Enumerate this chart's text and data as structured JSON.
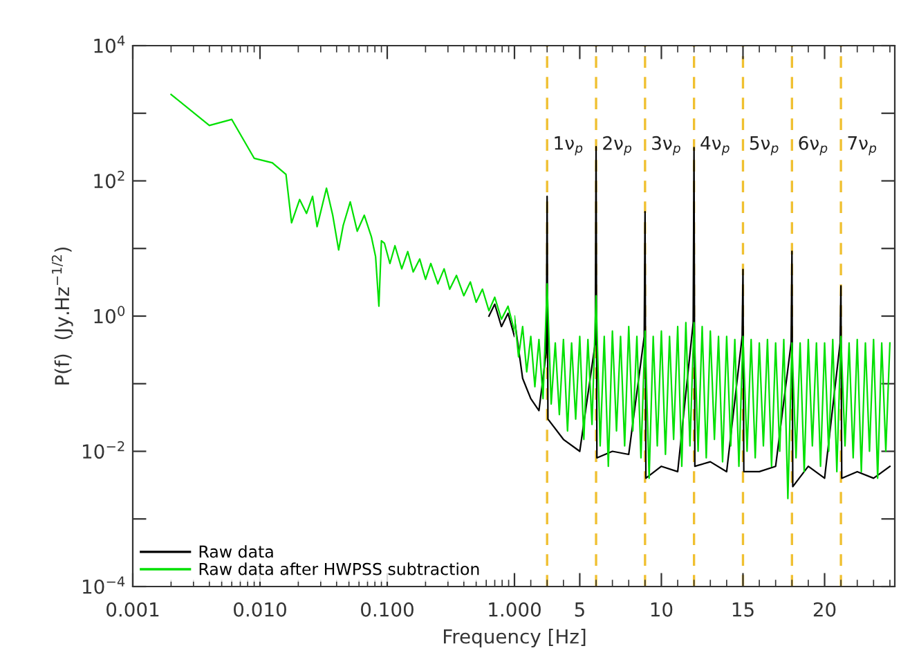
{
  "chart_data": [
    {
      "type": "line",
      "xlabel": "Frequency [Hz]",
      "ylabel": "P(f)  (Jy.Hz$^{−1/2}$)",
      "log": "xy",
      "xlim": [
        0.001,
        1
      ],
      "ylim": [
        0.0001,
        10000
      ],
      "xticks": [
        0.001,
        {
          "value": 0.01,
          "label": "0.010"
        },
        {
          "value": 0.1,
          "label": "0.100"
        },
        {
          "value": 1,
          "label": "1.000"
        }
      ],
      "yticks": [
        {
          "value": 0.0001,
          "label": "10$^{−4}$"
        },
        {
          "value": 0.001,
          "label": null
        },
        {
          "value": 0.01,
          "label": "10$^{−2}$"
        },
        {
          "value": 0.1,
          "label": null
        },
        {
          "value": 1,
          "label": "10$^{0}$"
        },
        {
          "value": 10,
          "label": null
        },
        {
          "value": 100,
          "label": "10$^{2}$"
        },
        {
          "value": 1000,
          "label": null
        },
        {
          "value": 10000,
          "label": "10$^{4}$"
        }
      ],
      "legend": "bottom left",
      "grid": false,
      "series": [
        {
          "name": "Raw data",
          "color": "#000000",
          "x": [
            0.63,
            0.7,
            0.79,
            0.89,
            1.0
          ],
          "values": [
            1.0,
            1.5,
            0.7,
            1.1,
            0.5
          ]
        },
        {
          "name": "Raw data after HWPSS subtraction",
          "color": "#00e000",
          "x": [
            0.002,
            0.004,
            0.006,
            0.009,
            0.0125,
            0.016,
            0.0177,
            0.0205,
            0.0232,
            0.0259,
            0.0281,
            0.0333,
            0.0373,
            0.0415,
            0.0451,
            0.0512,
            0.0581,
            0.066,
            0.075,
            0.081,
            0.086,
            0.09,
            0.095,
            0.105,
            0.115,
            0.13,
            0.145,
            0.16,
            0.18,
            0.2,
            0.22,
            0.25,
            0.28,
            0.31,
            0.35,
            0.4,
            0.45,
            0.5,
            0.56,
            0.63,
            0.7,
            0.79,
            0.89,
            1.0
          ],
          "values": [
            1900,
            660,
            810,
            216,
            185,
            125,
            24,
            53,
            33,
            59,
            21,
            78,
            31,
            9.5,
            22,
            49,
            18,
            31,
            15,
            7.6,
            1.4,
            13,
            12,
            6,
            11,
            5,
            9,
            4.5,
            7,
            3.5,
            6,
            3,
            5,
            2.5,
            4,
            2,
            3.2,
            1.6,
            2.5,
            1.2,
            1.9,
            0.9,
            1.4,
            0.6
          ]
        }
      ]
    },
    {
      "type": "line",
      "log": "y",
      "xlim": [
        1,
        24.3
      ],
      "ylim": [
        0.0001,
        10000
      ],
      "xticks": [
        5,
        10,
        15,
        20
      ],
      "yticks": [
        0.0001,
        0.001,
        0.01,
        0.1,
        1,
        10,
        100,
        1000,
        10000
      ],
      "tick_labels": "x",
      "grid": false,
      "ref_lines": [
        {
          "axis": "x",
          "value": 3,
          "label": "1ν$_{p}$",
          "color": "#f0c030",
          "line_style": "dashed"
        },
        {
          "axis": "x",
          "value": 6,
          "label": "2ν$_{p}$",
          "color": "#f0c030",
          "line_style": "dashed"
        },
        {
          "axis": "x",
          "value": 9,
          "label": "3ν$_{p}$",
          "color": "#f0c030",
          "line_style": "dashed"
        },
        {
          "axis": "x",
          "value": 12,
          "label": "4ν$_{p}$",
          "color": "#f0c030",
          "line_style": "dashed"
        },
        {
          "axis": "x",
          "value": 15,
          "label": "5ν$_{p}$",
          "color": "#f0c030",
          "line_style": "dashed"
        },
        {
          "axis": "x",
          "value": 18,
          "label": "6ν$_{p}$",
          "color": "#f0c030",
          "line_style": "dashed"
        },
        {
          "axis": "x",
          "value": 21,
          "label": "7ν$_{p}$",
          "color": "#f0c030",
          "line_style": "dashed"
        }
      ],
      "series": [
        {
          "color": "#000000",
          "x": [
            1.0,
            1.5,
            2.0,
            2.5,
            2.95,
            3.0,
            3.05,
            4.0,
            5.0,
            5.95,
            6.0,
            6.05,
            7.0,
            8.0,
            8.95,
            9.0,
            9.05,
            10.0,
            11.0,
            11.95,
            12.0,
            12.05,
            13.0,
            14.0,
            14.95,
            15.0,
            15.05,
            16.0,
            17.0,
            17.95,
            18.0,
            18.05,
            19.0,
            20.0,
            20.95,
            21.0,
            21.05,
            22.0,
            23.0,
            24.0
          ],
          "values": [
            0.9,
            0.12,
            0.06,
            0.04,
            0.3,
            59,
            0.03,
            0.015,
            0.01,
            0.4,
            320,
            0.008,
            0.01,
            0.009,
            0.5,
            35,
            0.004,
            0.006,
            0.005,
            0.8,
            310,
            0.006,
            0.007,
            0.005,
            0.5,
            4.9,
            0.005,
            0.005,
            0.006,
            0.4,
            9.1,
            0.003,
            0.006,
            0.004,
            0.4,
            2.8,
            0.004,
            0.005,
            0.004,
            0.006
          ]
        },
        {
          "color": "#00e000",
          "x": [
            1.0,
            1.25,
            1.5,
            1.75,
            2.0,
            2.25,
            2.5,
            2.75,
            3.0,
            3.25,
            3.5,
            3.75,
            4.0,
            4.25,
            4.5,
            4.75,
            5.0,
            5.25,
            5.5,
            5.75,
            6.0,
            6.25,
            6.5,
            6.75,
            7.0,
            7.25,
            7.5,
            7.75,
            8.0,
            8.25,
            8.5,
            8.75,
            9.0,
            9.25,
            9.5,
            9.75,
            10.0,
            10.25,
            10.5,
            10.75,
            11.0,
            11.25,
            11.5,
            11.75,
            12.0,
            12.25,
            12.5,
            12.75,
            13.0,
            13.25,
            13.5,
            13.75,
            14.0,
            14.25,
            14.5,
            14.75,
            15.0,
            15.25,
            15.5,
            15.75,
            16.0,
            16.25,
            16.5,
            16.75,
            17.0,
            17.25,
            17.5,
            17.75,
            18.0,
            18.25,
            18.5,
            18.75,
            19.0,
            19.25,
            19.5,
            19.75,
            20.0,
            20.25,
            20.5,
            20.75,
            21.0,
            21.25,
            21.5,
            21.75,
            22.0,
            22.25,
            22.5,
            22.75,
            23.0,
            23.25,
            23.5,
            23.75,
            24.0
          ],
          "values": [
            1.0,
            0.25,
            0.7,
            0.15,
            0.5,
            0.09,
            0.45,
            0.06,
            3,
            0.05,
            0.4,
            0.035,
            0.45,
            0.02,
            0.4,
            0.03,
            0.5,
            0.015,
            0.45,
            0.025,
            2,
            0.012,
            0.5,
            0.006,
            0.6,
            0.02,
            0.5,
            0.012,
            0.7,
            0.02,
            0.5,
            0.008,
            0.6,
            0.004,
            0.5,
            0.012,
            0.6,
            0.009,
            0.5,
            0.015,
            0.7,
            0.006,
            0.8,
            0.012,
            0.8,
            0.01,
            0.7,
            0.008,
            0.6,
            0.015,
            0.5,
            0.007,
            0.5,
            0.012,
            0.45,
            0.006,
            0.5,
            0.01,
            0.45,
            0.008,
            0.4,
            0.012,
            0.45,
            0.006,
            0.4,
            0.01,
            0.45,
            0.002,
            0.4,
            0.008,
            0.4,
            0.005,
            0.45,
            0.012,
            0.4,
            0.006,
            0.4,
            0.01,
            0.45,
            0.005,
            0.5,
            0.012,
            0.4,
            0.008,
            0.45,
            0.005,
            0.4,
            0.01,
            0.45,
            0.004,
            0.4,
            0.01,
            0.4
          ]
        }
      ]
    }
  ]
}
